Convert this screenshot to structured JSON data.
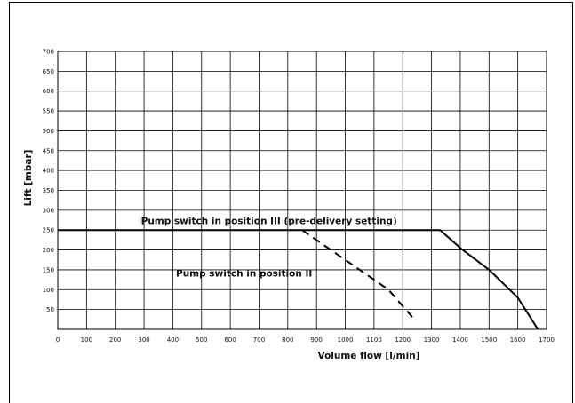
{
  "chart_data": {
    "type": "line",
    "title": "",
    "xlabel": "Volume flow [l/min]",
    "ylabel": "Lift [mbar]",
    "xlim": [
      0,
      1700
    ],
    "ylim": [
      0,
      700
    ],
    "x_ticks": [
      0,
      100,
      200,
      300,
      400,
      500,
      600,
      700,
      800,
      900,
      1000,
      1100,
      1200,
      1300,
      1400,
      1500,
      1600,
      1700
    ],
    "y_ticks": [
      50,
      100,
      150,
      200,
      250,
      300,
      350,
      400,
      450,
      500,
      550,
      600,
      650,
      700
    ],
    "grid": true,
    "legend": "none",
    "series": [
      {
        "style": "solid",
        "x": [
          0,
          1330,
          1400,
          1500,
          1600,
          1670
        ],
        "y": [
          250,
          250,
          205,
          150,
          80,
          0
        ]
      },
      {
        "style": "dashed",
        "x": [
          850,
          950,
          1050,
          1150,
          1240
        ],
        "y": [
          250,
          200,
          150,
          100,
          25
        ]
      }
    ],
    "annotations": [
      {
        "text": "Pump switch in position III (pre-delivery setting)",
        "x": 1180,
        "y": 265,
        "anchor": "end"
      },
      {
        "text": "Pump switch in position II",
        "x": 885,
        "y": 133,
        "anchor": "end"
      }
    ]
  }
}
